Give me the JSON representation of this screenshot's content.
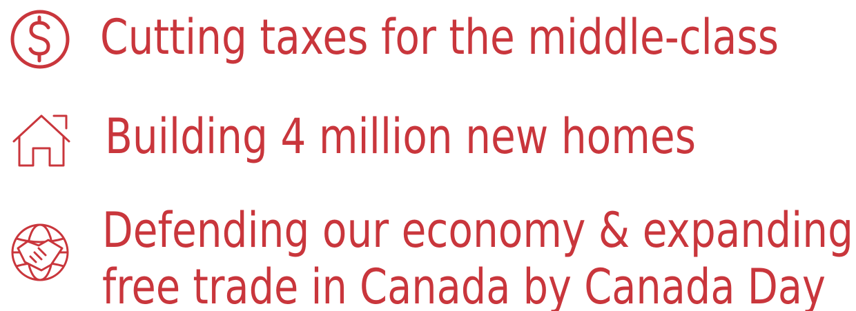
{
  "items": [
    {
      "lines": [
        "Cutting taxes for the middle-class"
      ]
    },
    {
      "lines": [
        "Building 4 million new homes"
      ]
    },
    {
      "lines": [
        "Defending our economy & expanding",
        "free trade in Canada by Canada Day"
      ]
    }
  ]
}
